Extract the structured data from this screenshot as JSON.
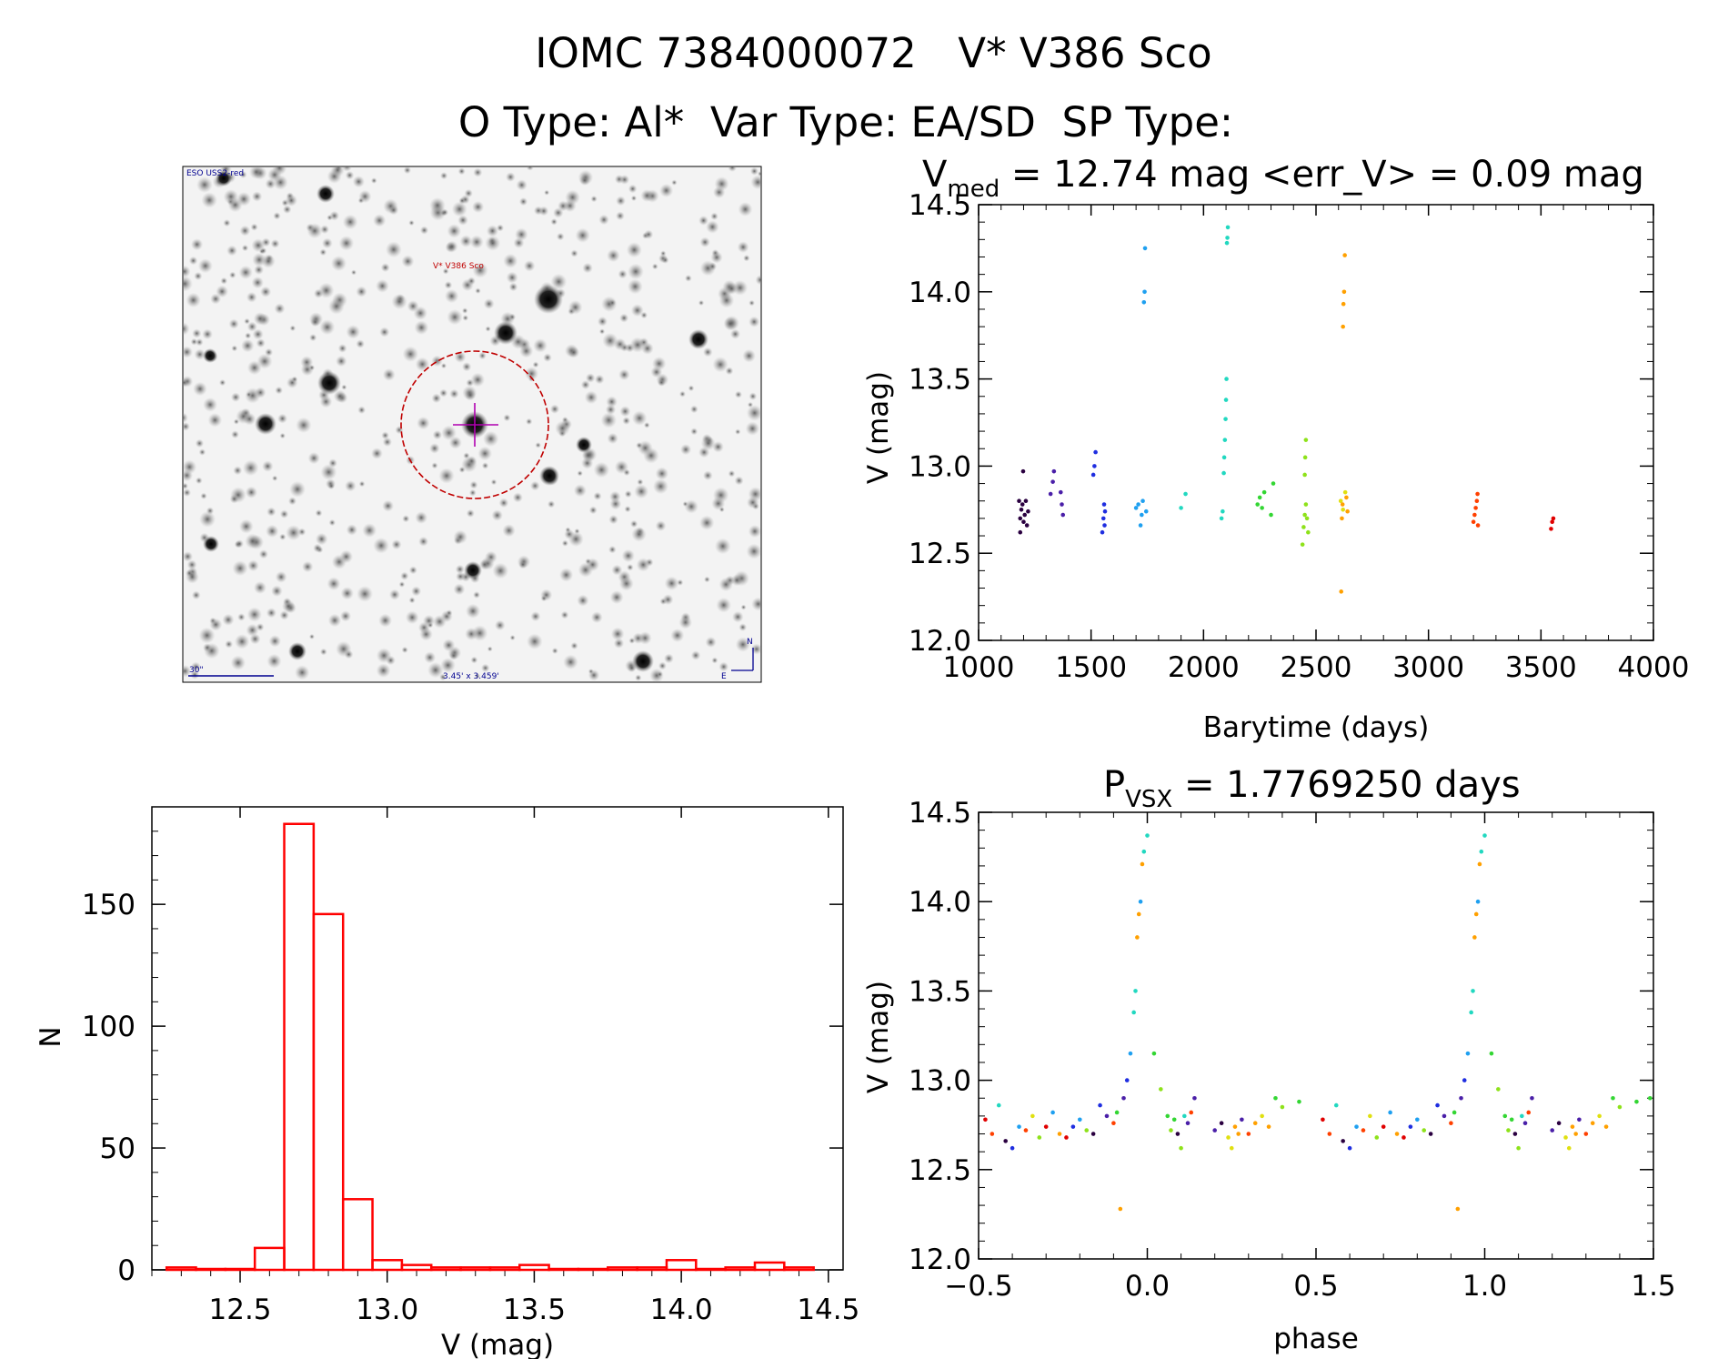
{
  "header": {
    "line1_id": "IOMC 7384000072",
    "line1_name": "V* V386 Sco",
    "line2": "O Type: Al*  Var Type: EA/SD  SP Type:"
  },
  "finder": {
    "survey_label": "ESO USS2-red",
    "object_label": "V* V386 Sco",
    "scale_label": "30\"",
    "fov_label": "3.45' x 3.459'",
    "compass_n": "N",
    "compass_e": "E"
  },
  "colors": {
    "histogram": "#ff0000",
    "reticle_circle": "#c00000",
    "reticle_cross": "#b000b0",
    "finder_annotations": "#000090",
    "season_palette": [
      "#2a0040",
      "#4a1fa8",
      "#1f2ee0",
      "#1fa0f0",
      "#22d8c0",
      "#33d633",
      "#8ee21a",
      "#e0e010",
      "#ffa000",
      "#ff4000",
      "#e00000",
      "#000000"
    ]
  },
  "chart_data": [
    {
      "type": "scatter",
      "panel": "light-curve",
      "title_main": "V",
      "title_sub": "med",
      "title_rest": " = 12.74 mag <err_V> = 0.09 mag",
      "xlabel": "Barytime (days)",
      "ylabel": "V (mag)",
      "xlim": [
        1000,
        4000
      ],
      "ylim": [
        14.5,
        12.0
      ],
      "y_inverted": true,
      "xticks": [
        "1000",
        "1500",
        "2000",
        "2500",
        "3000",
        "3500",
        "4000"
      ],
      "yticks": [
        "12.0",
        "12.5",
        "13.0",
        "13.5",
        "14.0",
        "14.5"
      ],
      "seasons": [
        {
          "color_index": 0,
          "points": [
            [
              1180,
              12.8
            ],
            [
              1185,
              12.7
            ],
            [
              1190,
              12.75
            ],
            [
              1195,
              12.78
            ],
            [
              1200,
              12.68
            ],
            [
              1205,
              12.72
            ],
            [
              1210,
              12.8
            ],
            [
              1185,
              12.62
            ],
            [
              1215,
              12.66
            ],
            [
              1198,
              12.97
            ],
            [
              1220,
              12.74
            ]
          ]
        },
        {
          "color_index": 1,
          "points": [
            [
              1320,
              12.84
            ],
            [
              1330,
              12.91
            ],
            [
              1335,
              12.97
            ],
            [
              1365,
              12.85
            ],
            [
              1370,
              12.78
            ],
            [
              1375,
              12.72
            ]
          ]
        },
        {
          "color_index": 2,
          "points": [
            [
              1510,
              12.95
            ],
            [
              1515,
              13.0
            ],
            [
              1520,
              13.08
            ],
            [
              1550,
              12.62
            ],
            [
              1555,
              12.7
            ],
            [
              1558,
              12.78
            ],
            [
              1560,
              12.66
            ],
            [
              1562,
              12.74
            ]
          ]
        },
        {
          "color_index": 3,
          "points": [
            [
              1700,
              12.76
            ],
            [
              1710,
              12.78
            ],
            [
              1720,
              12.66
            ],
            [
              1725,
              12.72
            ],
            [
              1730,
              12.8
            ],
            [
              1735,
              13.94
            ],
            [
              1738,
              14.0
            ],
            [
              1740,
              14.25
            ],
            [
              1745,
              12.74
            ]
          ]
        },
        {
          "color_index": 4,
          "points": [
            [
              1900,
              12.76
            ],
            [
              1920,
              12.84
            ],
            [
              2080,
              12.7
            ],
            [
              2085,
              12.74
            ],
            [
              2090,
              12.96
            ],
            [
              2092,
              13.05
            ],
            [
              2095,
              13.15
            ],
            [
              2098,
              13.27
            ],
            [
              2100,
              13.38
            ],
            [
              2102,
              13.5
            ],
            [
              2104,
              14.28
            ],
            [
              2106,
              14.31
            ],
            [
              2108,
              14.37
            ]
          ]
        },
        {
          "color_index": 5,
          "points": [
            [
              2240,
              12.78
            ],
            [
              2250,
              12.82
            ],
            [
              2260,
              12.76
            ],
            [
              2270,
              12.85
            ],
            [
              2300,
              12.72
            ],
            [
              2310,
              12.9
            ]
          ]
        },
        {
          "color_index": 6,
          "points": [
            [
              2440,
              12.55
            ],
            [
              2445,
              12.65
            ],
            [
              2450,
              12.72
            ],
            [
              2455,
              12.78
            ],
            [
              2450,
              12.95
            ],
            [
              2452,
              13.05
            ],
            [
              2455,
              13.15
            ],
            [
              2460,
              12.7
            ],
            [
              2465,
              12.62
            ]
          ]
        },
        {
          "color_index": 7,
          "points": [
            [
              2610,
              12.8
            ],
            [
              2620,
              12.75
            ],
            [
              2630,
              12.85
            ]
          ]
        },
        {
          "color_index": 8,
          "points": [
            [
              2612,
              12.28
            ],
            [
              2615,
              12.7
            ],
            [
              2618,
              12.78
            ],
            [
              2620,
              13.8
            ],
            [
              2622,
              13.93
            ],
            [
              2625,
              14.0
            ],
            [
              2628,
              14.21
            ],
            [
              2635,
              12.82
            ],
            [
              2640,
              12.74
            ]
          ]
        },
        {
          "color_index": 9,
          "points": [
            [
              3200,
              12.68
            ],
            [
              3205,
              12.72
            ],
            [
              3210,
              12.76
            ],
            [
              3215,
              12.8
            ],
            [
              3220,
              12.66
            ],
            [
              3218,
              12.84
            ]
          ]
        },
        {
          "color_index": 10,
          "points": [
            [
              3545,
              12.64
            ],
            [
              3550,
              12.68
            ],
            [
              3555,
              12.7
            ]
          ]
        }
      ]
    },
    {
      "type": "scatter",
      "panel": "phase-curve",
      "title_main": "P",
      "title_sub": "VSX",
      "title_rest": " = 1.7769250 days",
      "xlabel": "phase",
      "ylabel": "V (mag)",
      "xlim": [
        -0.5,
        1.5
      ],
      "ylim": [
        14.5,
        12.0
      ],
      "y_inverted": true,
      "xticks": [
        "−0.5",
        "0.0",
        "0.5",
        "1.0",
        "1.5"
      ],
      "yticks": [
        "12.0",
        "12.5",
        "13.0",
        "13.5",
        "14.0",
        "14.5"
      ],
      "points": [
        [
          -0.48,
          12.78,
          10
        ],
        [
          -0.46,
          12.7,
          9
        ],
        [
          -0.44,
          12.86,
          4
        ],
        [
          -0.42,
          12.66,
          0
        ],
        [
          -0.4,
          12.62,
          2
        ],
        [
          -0.38,
          12.74,
          3
        ],
        [
          -0.36,
          12.72,
          9
        ],
        [
          -0.34,
          12.8,
          7
        ],
        [
          -0.32,
          12.68,
          6
        ],
        [
          -0.3,
          12.74,
          10
        ],
        [
          -0.28,
          12.82,
          3
        ],
        [
          -0.26,
          12.7,
          8
        ],
        [
          -0.24,
          12.68,
          10
        ],
        [
          -0.22,
          12.74,
          2
        ],
        [
          -0.2,
          12.78,
          3
        ],
        [
          -0.18,
          12.72,
          6
        ],
        [
          -0.16,
          12.7,
          0
        ],
        [
          -0.14,
          12.86,
          2
        ],
        [
          -0.12,
          12.8,
          1
        ],
        [
          -0.1,
          12.76,
          9
        ],
        [
          -0.09,
          12.82,
          5
        ],
        [
          -0.08,
          12.28,
          8
        ],
        [
          -0.07,
          12.9,
          1
        ],
        [
          -0.06,
          13.0,
          2
        ],
        [
          -0.05,
          13.15,
          3
        ],
        [
          -0.04,
          13.38,
          4
        ],
        [
          -0.035,
          13.5,
          4
        ],
        [
          -0.03,
          13.8,
          8
        ],
        [
          -0.025,
          13.93,
          8
        ],
        [
          -0.02,
          14.0,
          3
        ],
        [
          -0.015,
          14.21,
          8
        ],
        [
          -0.01,
          14.28,
          4
        ],
        [
          0.0,
          14.37,
          4
        ],
        [
          0.02,
          13.15,
          5
        ],
        [
          0.04,
          12.95,
          6
        ],
        [
          0.06,
          12.8,
          5
        ],
        [
          0.07,
          12.72,
          6
        ],
        [
          0.08,
          12.78,
          5
        ],
        [
          0.09,
          12.7,
          0
        ],
        [
          0.1,
          12.62,
          6
        ],
        [
          0.11,
          12.8,
          4
        ],
        [
          0.12,
          12.76,
          1
        ],
        [
          0.13,
          12.82,
          9
        ],
        [
          0.14,
          12.9,
          1
        ],
        [
          0.2,
          12.72,
          1
        ],
        [
          0.22,
          12.76,
          0
        ],
        [
          0.24,
          12.68,
          7
        ],
        [
          0.25,
          12.62,
          7
        ],
        [
          0.26,
          12.74,
          8
        ],
        [
          0.27,
          12.7,
          8
        ],
        [
          0.28,
          12.78,
          1
        ],
        [
          0.3,
          12.7,
          9
        ],
        [
          0.32,
          12.76,
          8
        ],
        [
          0.34,
          12.8,
          7
        ],
        [
          0.36,
          12.74,
          8
        ],
        [
          0.38,
          12.9,
          5
        ],
        [
          0.4,
          12.85,
          6
        ],
        [
          0.45,
          12.88,
          5
        ],
        [
          0.52,
          12.78,
          10
        ],
        [
          0.54,
          12.7,
          9
        ],
        [
          0.56,
          12.86,
          4
        ],
        [
          0.58,
          12.66,
          0
        ],
        [
          0.6,
          12.62,
          2
        ],
        [
          0.62,
          12.74,
          3
        ],
        [
          0.64,
          12.72,
          9
        ],
        [
          0.66,
          12.8,
          7
        ],
        [
          0.68,
          12.68,
          6
        ],
        [
          0.7,
          12.74,
          10
        ],
        [
          0.72,
          12.82,
          3
        ],
        [
          0.74,
          12.7,
          8
        ],
        [
          0.76,
          12.68,
          10
        ],
        [
          0.78,
          12.74,
          2
        ],
        [
          0.8,
          12.78,
          3
        ],
        [
          0.82,
          12.72,
          6
        ],
        [
          0.84,
          12.7,
          0
        ],
        [
          0.86,
          12.86,
          2
        ],
        [
          0.88,
          12.8,
          1
        ],
        [
          0.9,
          12.76,
          9
        ],
        [
          0.91,
          12.82,
          5
        ],
        [
          0.92,
          12.28,
          8
        ],
        [
          0.93,
          12.9,
          1
        ],
        [
          0.94,
          13.0,
          2
        ],
        [
          0.95,
          13.15,
          3
        ],
        [
          0.96,
          13.38,
          4
        ],
        [
          0.965,
          13.5,
          4
        ],
        [
          0.97,
          13.8,
          8
        ],
        [
          0.975,
          13.93,
          8
        ],
        [
          0.98,
          14.0,
          3
        ],
        [
          0.985,
          14.21,
          8
        ],
        [
          0.99,
          14.28,
          4
        ],
        [
          1.0,
          14.37,
          4
        ],
        [
          1.02,
          13.15,
          5
        ],
        [
          1.04,
          12.95,
          6
        ],
        [
          1.06,
          12.8,
          5
        ],
        [
          1.07,
          12.72,
          6
        ],
        [
          1.08,
          12.78,
          5
        ],
        [
          1.09,
          12.7,
          0
        ],
        [
          1.1,
          12.62,
          6
        ],
        [
          1.11,
          12.8,
          4
        ],
        [
          1.12,
          12.76,
          1
        ],
        [
          1.13,
          12.82,
          9
        ],
        [
          1.14,
          12.9,
          1
        ],
        [
          1.2,
          12.72,
          1
        ],
        [
          1.22,
          12.76,
          0
        ],
        [
          1.24,
          12.68,
          7
        ],
        [
          1.25,
          12.62,
          7
        ],
        [
          1.26,
          12.74,
          8
        ],
        [
          1.27,
          12.7,
          8
        ],
        [
          1.28,
          12.78,
          1
        ],
        [
          1.3,
          12.7,
          9
        ],
        [
          1.32,
          12.76,
          8
        ],
        [
          1.34,
          12.8,
          7
        ],
        [
          1.36,
          12.74,
          8
        ],
        [
          1.38,
          12.9,
          5
        ],
        [
          1.4,
          12.85,
          6
        ],
        [
          1.45,
          12.88,
          5
        ],
        [
          1.49,
          12.9,
          5
        ]
      ]
    },
    {
      "type": "bar",
      "panel": "histogram",
      "xlabel": "V (mag)",
      "ylabel": "N",
      "xlim": [
        12.2,
        14.55
      ],
      "ylim": [
        0,
        190
      ],
      "xticks": [
        "12.5",
        "13.0",
        "13.5",
        "14.0",
        "14.5"
      ],
      "yticks": [
        "0",
        "50",
        "100",
        "150"
      ],
      "bin_width": 0.1,
      "bins": [
        [
          12.3,
          1
        ],
        [
          12.4,
          0
        ],
        [
          12.5,
          0
        ],
        [
          12.6,
          9
        ],
        [
          12.7,
          183
        ],
        [
          12.8,
          146
        ],
        [
          12.9,
          29
        ],
        [
          13.0,
          4
        ],
        [
          13.1,
          2
        ],
        [
          13.2,
          1
        ],
        [
          13.3,
          1
        ],
        [
          13.4,
          1
        ],
        [
          13.5,
          2
        ],
        [
          13.6,
          0
        ],
        [
          13.7,
          0
        ],
        [
          13.8,
          1
        ],
        [
          13.9,
          1
        ],
        [
          14.0,
          4
        ],
        [
          14.1,
          0
        ],
        [
          14.2,
          1
        ],
        [
          14.3,
          3
        ],
        [
          14.4,
          1
        ]
      ]
    }
  ]
}
